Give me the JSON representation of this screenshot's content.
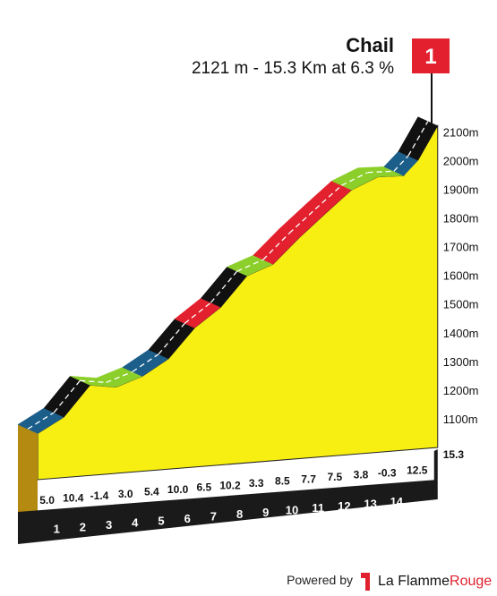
{
  "header": {
    "climb_name": "Chail",
    "climb_summary": "2121 m - 15.3 Km at 6.3 %",
    "category": "1"
  },
  "footer": {
    "powered_by": "Powered by",
    "brand_primary": "La Flamme",
    "brand_accent": "Rouge"
  },
  "colors": {
    "fill": "#f7ee12",
    "base": "#1a1a1a",
    "grad_blue": "#1c5e8a",
    "grad_black": "#111111",
    "grad_green": "#8ccf2b",
    "grad_red": "#e3202d",
    "flag": "#e3202d"
  },
  "chart_data": {
    "type": "area",
    "title": "Chail",
    "subtitle": "2121 m - 15.3 Km at 6.3 %",
    "xlabel": "",
    "ylabel": "",
    "x_unit": "km",
    "y_unit": "m",
    "ylim": [
      1000,
      2121
    ],
    "y_ticks": [
      "1100m",
      "1200m",
      "1300m",
      "1400m",
      "1500m",
      "1600m",
      "1700m",
      "1800m",
      "1900m",
      "2000m",
      "2100m"
    ],
    "y_tick_values": [
      1100,
      1200,
      1300,
      1400,
      1500,
      1600,
      1700,
      1800,
      1900,
      2000,
      2100
    ],
    "km_labels": [
      "1",
      "2",
      "3",
      "4",
      "5",
      "6",
      "7",
      "8",
      "9",
      "10",
      "11",
      "12",
      "13",
      "14",
      "15.3"
    ],
    "segments": [
      {
        "km_start": 0,
        "km_end": 1,
        "gradient": "5.0",
        "elev_start": 1161,
        "elev_end": 1211,
        "color": "blue"
      },
      {
        "km_start": 1,
        "km_end": 2,
        "gradient": "10.4",
        "elev_start": 1211,
        "elev_end": 1315,
        "color": "black"
      },
      {
        "km_start": 2,
        "km_end": 3,
        "gradient": "-1.4",
        "elev_start": 1315,
        "elev_end": 1301,
        "color": "green"
      },
      {
        "km_start": 3,
        "km_end": 4,
        "gradient": "3.0",
        "elev_start": 1301,
        "elev_end": 1331,
        "color": "green"
      },
      {
        "km_start": 4,
        "km_end": 5,
        "gradient": "5.4",
        "elev_start": 1331,
        "elev_end": 1385,
        "color": "blue"
      },
      {
        "km_start": 5,
        "km_end": 6,
        "gradient": "10.0",
        "elev_start": 1385,
        "elev_end": 1485,
        "color": "black"
      },
      {
        "km_start": 6,
        "km_end": 7,
        "gradient": "6.5",
        "elev_start": 1485,
        "elev_end": 1550,
        "color": "red"
      },
      {
        "km_start": 7,
        "km_end": 8,
        "gradient": "10.2",
        "elev_start": 1550,
        "elev_end": 1652,
        "color": "black"
      },
      {
        "km_start": 8,
        "km_end": 9,
        "gradient": "3.3",
        "elev_start": 1652,
        "elev_end": 1685,
        "color": "green"
      },
      {
        "km_start": 9,
        "km_end": 10,
        "gradient": "8.5",
        "elev_start": 1685,
        "elev_end": 1770,
        "color": "red"
      },
      {
        "km_start": 10,
        "km_end": 11,
        "gradient": "7.7",
        "elev_start": 1770,
        "elev_end": 1847,
        "color": "red"
      },
      {
        "km_start": 11,
        "km_end": 12,
        "gradient": "7.5",
        "elev_start": 1847,
        "elev_end": 1922,
        "color": "red"
      },
      {
        "km_start": 12,
        "km_end": 13,
        "gradient": "3.8",
        "elev_start": 1922,
        "elev_end": 1960,
        "color": "green"
      },
      {
        "km_start": 13,
        "km_end": 14,
        "gradient": "-0.3",
        "elev_start": 1960,
        "elev_end": 1957,
        "color": "green"
      },
      {
        "km_start": 14,
        "km_end": 15.3,
        "gradient": "12.5",
        "elev_start": 1957,
        "elev_end": 2121,
        "color": "blue_black"
      }
    ]
  }
}
